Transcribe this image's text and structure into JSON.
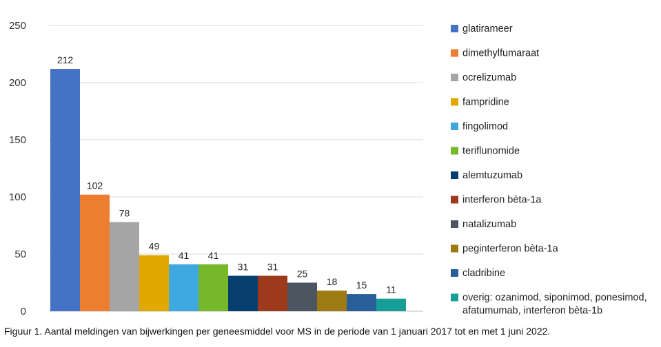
{
  "chart_data": {
    "type": "bar",
    "title": "",
    "xlabel": "",
    "ylabel": "",
    "ylim": [
      0,
      250
    ],
    "yticks": [
      0,
      50,
      100,
      150,
      200,
      250
    ],
    "grid": true,
    "legend_position": "right",
    "categories": [
      "glatirameer",
      "dimethylfumaraat",
      "ocrelizumab",
      "fampridine",
      "fingolimod",
      "teriflunomide",
      "alemtuzumab",
      "interferon bèta-1a",
      "natalizumab",
      "peginterferon bèta-1a",
      "cladribine",
      "overig: ozanimod, siponimod, ponesimod, afatumumab, interferon bèta-1b"
    ],
    "legend_lines": [
      [
        "glatirameer"
      ],
      [
        "dimethylfumaraat"
      ],
      [
        "ocrelizumab"
      ],
      [
        "fampridine"
      ],
      [
        "fingolimod"
      ],
      [
        "teriflunomide"
      ],
      [
        "alemtuzumab"
      ],
      [
        "interferon bèta-1a"
      ],
      [
        "natalizumab"
      ],
      [
        "peginterferon bèta-1a"
      ],
      [
        "cladribine"
      ],
      [
        "overig: ozanimod, siponimod, ponesimod,",
        "afatumumab, interferon bèta-1b"
      ]
    ],
    "values": [
      212,
      102,
      78,
      49,
      41,
      41,
      31,
      31,
      25,
      18,
      15,
      11
    ],
    "colors": [
      "#4472C4",
      "#ED7D31",
      "#A5A5A5",
      "#E0A800",
      "#3FA9DF",
      "#76B82A",
      "#063F6E",
      "#9E3A1C",
      "#4D5560",
      "#9C7A14",
      "#285E99",
      "#169E97"
    ]
  },
  "caption": "Figuur 1. Aantal meldingen van bijwerkingen per geneesmiddel voor MS in de periode van 1 januari 2017 tot en met 1 juni 2022."
}
